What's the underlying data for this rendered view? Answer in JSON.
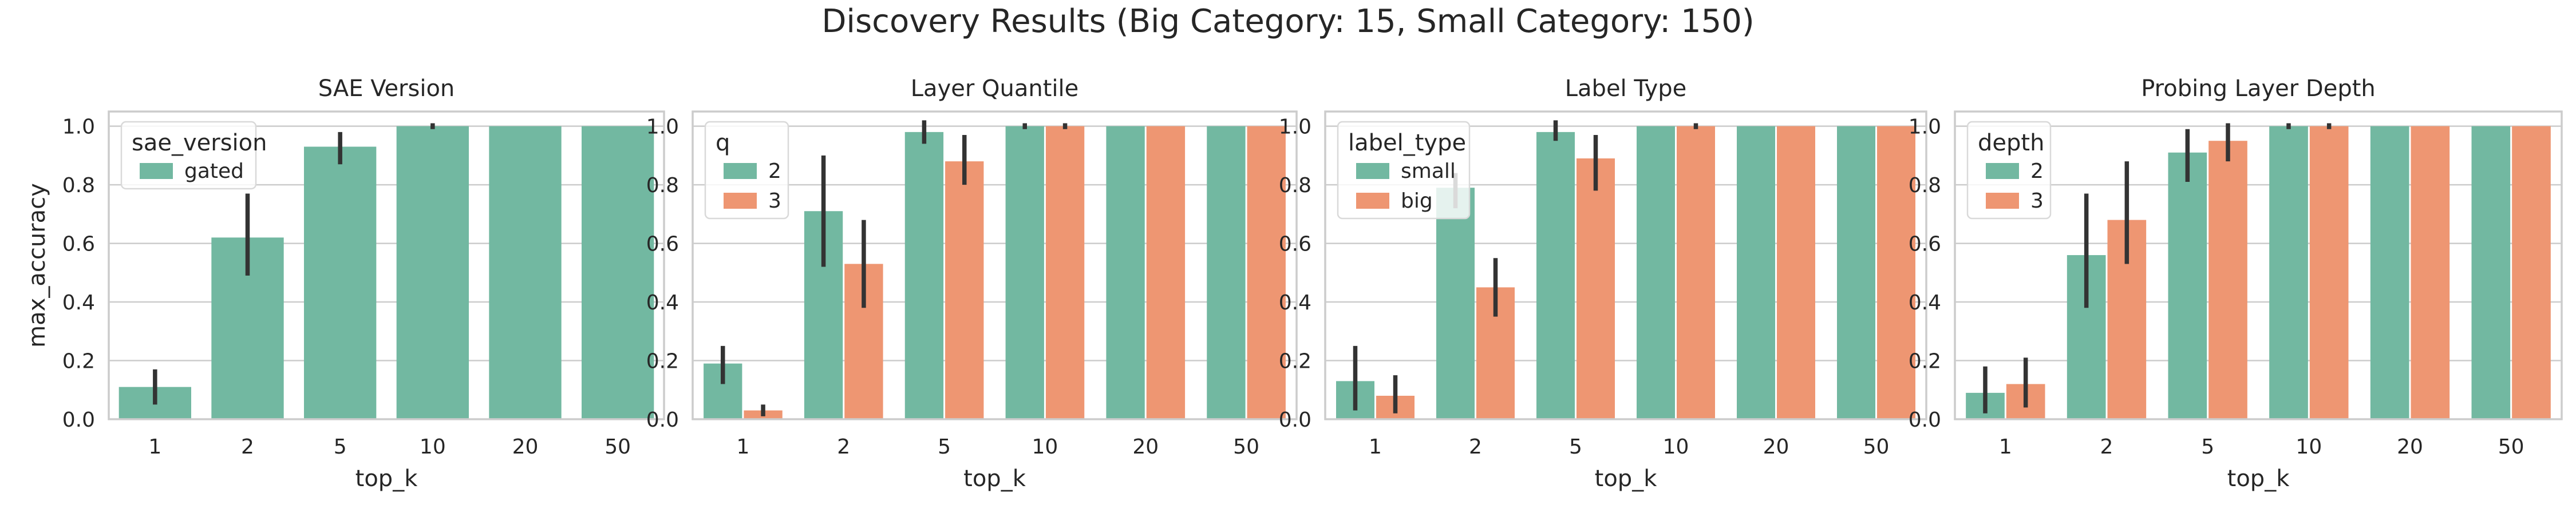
{
  "figure": {
    "title": "Discovery Results (Big Category: 15, Small Category: 150)"
  },
  "colors": {
    "series_1": "#72b8a1",
    "series_2": "#ee9672",
    "errorbar": "#333333",
    "grid": "#cccccc",
    "spine": "#cccccc",
    "legend_border": "#d9d9d9"
  },
  "chart_data": [
    {
      "type": "bar",
      "title": "SAE Version",
      "xlabel": "top_k",
      "ylabel": "max_accuracy",
      "categories": [
        "1",
        "2",
        "5",
        "10",
        "20",
        "50"
      ],
      "ylim": [
        0,
        1.05
      ],
      "yticks": [
        "0.0",
        "0.2",
        "0.4",
        "0.6",
        "0.8",
        "1.0"
      ],
      "grid": true,
      "legend": {
        "title": "sae_version",
        "position": "top-left"
      },
      "series": [
        {
          "name": "gated",
          "values": [
            0.11,
            0.62,
            0.93,
            1.0,
            1.0,
            1.0
          ],
          "err_low": [
            0.05,
            0.49,
            0.87,
            0.99,
            null,
            null
          ],
          "err_high": [
            0.17,
            0.77,
            0.98,
            1.01,
            null,
            null
          ]
        }
      ]
    },
    {
      "type": "bar",
      "title": "Layer Quantile",
      "xlabel": "top_k",
      "ylabel": "",
      "categories": [
        "1",
        "2",
        "5",
        "10",
        "20",
        "50"
      ],
      "ylim": [
        0,
        1.05
      ],
      "yticks": [
        "0.0",
        "0.2",
        "0.4",
        "0.6",
        "0.8",
        "1.0"
      ],
      "grid": true,
      "legend": {
        "title": "q",
        "position": "top-left"
      },
      "series": [
        {
          "name": "2",
          "values": [
            0.19,
            0.71,
            0.98,
            1.0,
            1.0,
            1.0
          ],
          "err_low": [
            0.12,
            0.52,
            0.94,
            0.99,
            null,
            null
          ],
          "err_high": [
            0.25,
            0.9,
            1.02,
            1.01,
            null,
            null
          ]
        },
        {
          "name": "3",
          "values": [
            0.03,
            0.53,
            0.88,
            1.0,
            1.0,
            1.0
          ],
          "err_low": [
            0.01,
            0.38,
            0.8,
            0.99,
            null,
            null
          ],
          "err_high": [
            0.05,
            0.68,
            0.97,
            1.01,
            null,
            null
          ]
        }
      ]
    },
    {
      "type": "bar",
      "title": "Label Type",
      "xlabel": "top_k",
      "ylabel": "",
      "categories": [
        "1",
        "2",
        "5",
        "10",
        "20",
        "50"
      ],
      "ylim": [
        0,
        1.05
      ],
      "yticks": [
        "0.0",
        "0.2",
        "0.4",
        "0.6",
        "0.8",
        "1.0"
      ],
      "grid": true,
      "legend": {
        "title": "label_type",
        "position": "top-left"
      },
      "series": [
        {
          "name": "small",
          "values": [
            0.13,
            0.79,
            0.98,
            1.0,
            1.0,
            1.0
          ],
          "err_low": [
            0.03,
            0.72,
            0.95,
            null,
            null,
            null
          ],
          "err_high": [
            0.25,
            0.84,
            1.02,
            null,
            null,
            null
          ]
        },
        {
          "name": "big",
          "values": [
            0.08,
            0.45,
            0.89,
            1.0,
            1.0,
            1.0
          ],
          "err_low": [
            0.02,
            0.35,
            0.78,
            0.99,
            null,
            null
          ],
          "err_high": [
            0.15,
            0.55,
            0.97,
            1.01,
            null,
            null
          ]
        }
      ]
    },
    {
      "type": "bar",
      "title": "Probing Layer Depth",
      "xlabel": "top_k",
      "ylabel": "",
      "categories": [
        "1",
        "2",
        "5",
        "10",
        "20",
        "50"
      ],
      "ylim": [
        0,
        1.05
      ],
      "yticks": [
        "0.0",
        "0.2",
        "0.4",
        "0.6",
        "0.8",
        "1.0"
      ],
      "grid": true,
      "legend": {
        "title": "depth",
        "position": "top-left"
      },
      "series": [
        {
          "name": "2",
          "values": [
            0.09,
            0.56,
            0.91,
            1.0,
            1.0,
            1.0
          ],
          "err_low": [
            0.02,
            0.38,
            0.81,
            0.99,
            null,
            null
          ],
          "err_high": [
            0.18,
            0.77,
            0.99,
            1.01,
            null,
            null
          ]
        },
        {
          "name": "3",
          "values": [
            0.12,
            0.68,
            0.95,
            1.0,
            1.0,
            1.0
          ],
          "err_low": [
            0.04,
            0.53,
            0.88,
            0.99,
            null,
            null
          ],
          "err_high": [
            0.21,
            0.88,
            1.01,
            1.01,
            null,
            null
          ]
        }
      ]
    }
  ]
}
